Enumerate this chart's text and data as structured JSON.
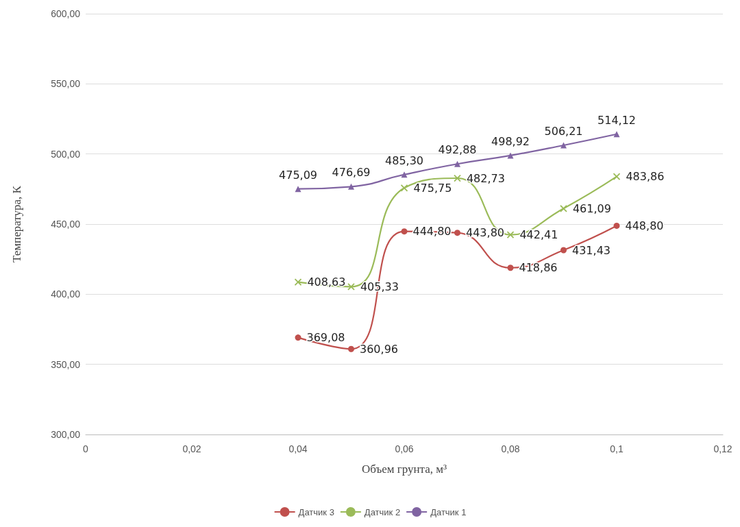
{
  "chart_data": {
    "type": "line",
    "xlabel": "Объем грунта, м³",
    "ylabel": "Температура, К",
    "x": [
      0.04,
      0.05,
      0.06,
      0.07,
      0.08,
      0.09,
      0.1
    ],
    "series": [
      {
        "name": "Датчик 3",
        "color": "#c0504d",
        "marker": "circle",
        "values": [
          369.08,
          360.96,
          444.8,
          443.8,
          418.86,
          431.43,
          448.8
        ],
        "value_labels": [
          "369,08",
          "360,96",
          "444,80",
          "443,80",
          "418,86",
          "431,43",
          "448,80"
        ]
      },
      {
        "name": "Датчик 2",
        "color": "#9bbb59",
        "marker": "cross",
        "values": [
          408.63,
          405.33,
          475.75,
          482.73,
          442.41,
          461.09,
          483.86
        ],
        "value_labels": [
          "408,63",
          "405,33",
          "475,75",
          "482,73",
          "442,41",
          "461,09",
          "483,86"
        ]
      },
      {
        "name": "Датчик 1",
        "color": "#8064a2",
        "marker": "triangle",
        "values": [
          475.09,
          476.69,
          485.3,
          492.88,
          498.92,
          506.21,
          514.12
        ],
        "value_labels": [
          "475,09",
          "476,69",
          "485,30",
          "492,88",
          "498,92",
          "506,21",
          "514,12"
        ]
      }
    ],
    "xlim": [
      0,
      0.12
    ],
    "xticks": [
      0,
      {
        "value": 0.02,
        "label": "0,02"
      },
      {
        "value": 0.04,
        "label": "0,04"
      },
      {
        "value": 0.06,
        "label": "0,06"
      },
      {
        "value": 0.08,
        "label": "0,08"
      },
      {
        "value": 0.1,
        "label": "0,1"
      },
      {
        "value": 0.12,
        "label": "0,12"
      }
    ],
    "ylim": [
      300,
      600
    ],
    "yticks": [
      {
        "value": 300,
        "label": "300,00"
      },
      {
        "value": 350,
        "label": "350,00"
      },
      {
        "value": 400,
        "label": "400,00"
      },
      {
        "value": 450,
        "label": "450,00"
      },
      {
        "value": 500,
        "label": "500,00"
      },
      {
        "value": 550,
        "label": "550,00"
      },
      {
        "value": 600,
        "label": "600,00"
      }
    ],
    "grid": "y",
    "legend": "bottom",
    "line_style": "solid"
  }
}
